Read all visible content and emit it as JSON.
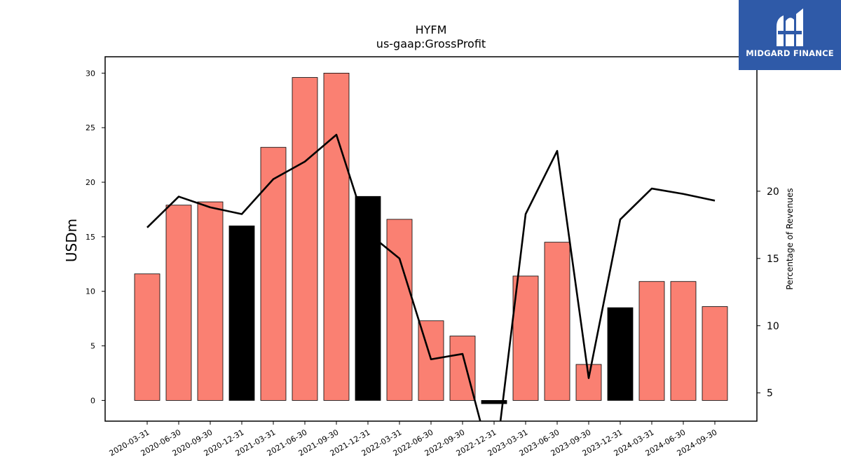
{
  "chart_data": {
    "type": "bar",
    "title": "HYFM",
    "subtitle": "us-gaap:GrossProfit",
    "ylabel": "USDm",
    "y2label": "Percentage of Revenues",
    "ylim": [
      -1.9,
      31.5
    ],
    "y2lim": [
      2.9,
      30.0
    ],
    "yticks": [
      0,
      5,
      10,
      15,
      20,
      25,
      30
    ],
    "y2ticks": [
      5,
      10,
      15,
      20
    ],
    "categories": [
      "2020-03-31",
      "2020-06-30",
      "2020-09-30",
      "2020-12-31",
      "2021-03-31",
      "2021-06-30",
      "2021-09-30",
      "2021-12-31",
      "2022-03-31",
      "2022-06-30",
      "2022-09-30",
      "2022-12-31",
      "2023-03-31",
      "2023-06-30",
      "2023-09-30",
      "2023-12-31",
      "2024-03-31",
      "2024-06-30",
      "2024-09-30"
    ],
    "series": [
      {
        "kind": "bar",
        "values": [
          11.6,
          17.9,
          18.2,
          16.0,
          23.2,
          29.6,
          30.0,
          18.7,
          16.6,
          7.3,
          5.9,
          -0.3,
          11.4,
          14.5,
          3.3,
          8.5,
          10.9,
          10.9,
          8.6
        ],
        "colors": [
          "#fa8072",
          "#fa8072",
          "#fa8072",
          "#000000",
          "#fa8072",
          "#fa8072",
          "#fa8072",
          "#000000",
          "#fa8072",
          "#fa8072",
          "#fa8072",
          "#000000",
          "#fa8072",
          "#fa8072",
          "#fa8072",
          "#000000",
          "#fa8072",
          "#fa8072",
          "#fa8072"
        ]
      },
      {
        "kind": "line",
        "axis": "right",
        "color": "#000000",
        "values": [
          17.3,
          19.6,
          18.8,
          18.3,
          20.9,
          22.2,
          24.2,
          16.9,
          15.0,
          7.5,
          7.9,
          -1.0,
          18.3,
          23.0,
          6.1,
          17.9,
          20.2,
          19.8,
          19.3
        ]
      }
    ]
  },
  "logo": {
    "text": "MIDGARD FINANCE",
    "bg_color": "#2f5aa8"
  }
}
